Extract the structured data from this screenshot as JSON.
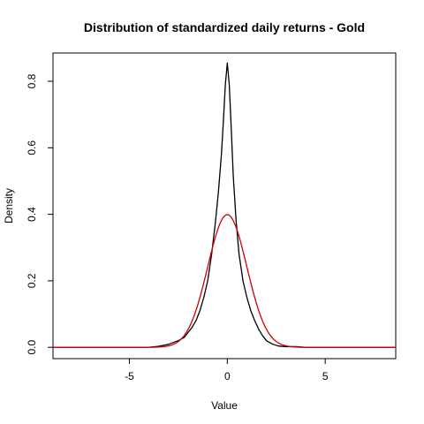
{
  "chart_data": {
    "type": "line",
    "title": "Distribution of standardized daily returns - Gold",
    "xlabel": "Value",
    "ylabel": "Density",
    "xlim": [
      -8.9,
      8.6
    ],
    "ylim": [
      -0.034,
      0.885
    ],
    "x_ticks": [
      -5,
      0,
      5
    ],
    "x_tick_labels": [
      "-5",
      "0",
      "5"
    ],
    "y_ticks": [
      0.0,
      0.2,
      0.4,
      0.6,
      0.8
    ],
    "y_tick_labels": [
      "0.0",
      "0.2",
      "0.4",
      "0.6",
      "0.8"
    ],
    "grid": false,
    "legend": "none",
    "series": [
      {
        "color": "#000000",
        "x": [
          -8.9,
          -4.0,
          -3.5,
          -3.0,
          -2.7,
          -2.5,
          -2.2,
          -2.0,
          -1.8,
          -1.6,
          -1.4,
          -1.2,
          -1.0,
          -0.8,
          -0.6,
          -0.45,
          -0.3,
          -0.2,
          -0.1,
          0.0,
          0.1,
          0.2,
          0.3,
          0.45,
          0.6,
          0.8,
          1.0,
          1.2,
          1.4,
          1.6,
          1.8,
          2.0,
          2.3,
          2.6,
          3.0,
          3.5,
          4.0,
          8.6
        ],
        "y": [
          0.0,
          0.0,
          0.003,
          0.009,
          0.016,
          0.02,
          0.03,
          0.045,
          0.06,
          0.08,
          0.11,
          0.15,
          0.2,
          0.28,
          0.38,
          0.47,
          0.58,
          0.68,
          0.79,
          0.855,
          0.79,
          0.66,
          0.52,
          0.38,
          0.28,
          0.2,
          0.15,
          0.11,
          0.08,
          0.055,
          0.035,
          0.02,
          0.01,
          0.004,
          0.002,
          0.002,
          0.0,
          0.0
        ]
      },
      {
        "name": "normal",
        "color": "#cc0000",
        "function": "standard_normal_pdf",
        "x_range": [
          -8.9,
          8.6
        ]
      }
    ]
  }
}
